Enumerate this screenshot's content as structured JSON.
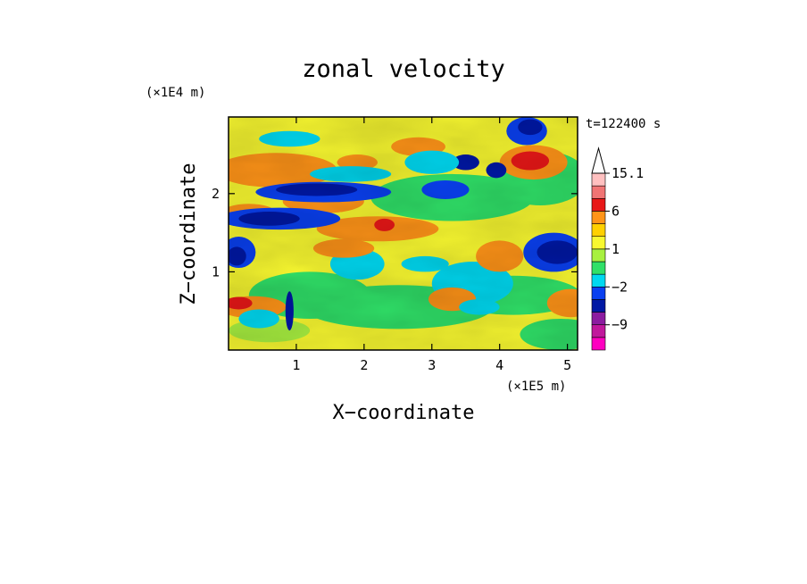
{
  "chart_data": {
    "type": "heatmap",
    "title": "zonal velocity",
    "xlabel": "X−coordinate",
    "ylabel": "Z−coordinate",
    "x_unit": "(×1E5 m)",
    "y_unit": "(×1E4 m)",
    "time_label": "t=122400 s",
    "xlim": [
      0,
      5.15
    ],
    "ylim": [
      0,
      2.98
    ],
    "x_ticks": [
      1,
      2,
      3,
      4,
      5
    ],
    "y_ticks": [
      1,
      2
    ],
    "colorbar": {
      "levels": [
        -15,
        -12,
        -9,
        -6,
        -3,
        -2,
        -1,
        0,
        1,
        2,
        3,
        6,
        9,
        12,
        15.1
      ],
      "colors": [
        "#ff00c0",
        "#c0189c",
        "#8c1ca0",
        "#0018a4",
        "#0a40f0",
        "#00d8f0",
        "#30e068",
        "#a8f040",
        "#f8f830",
        "#ffd000",
        "#ff9418",
        "#e81818",
        "#f07474",
        "#ffc0c0"
      ],
      "tick_labels": [
        {
          "value": 15.1,
          "label": "15.1"
        },
        {
          "value": 6,
          "label": "6"
        },
        {
          "value": 1,
          "label": "1"
        },
        {
          "value": -2,
          "label": "−2"
        },
        {
          "value": -9,
          "label": "−9"
        }
      ],
      "extend": "max"
    }
  }
}
